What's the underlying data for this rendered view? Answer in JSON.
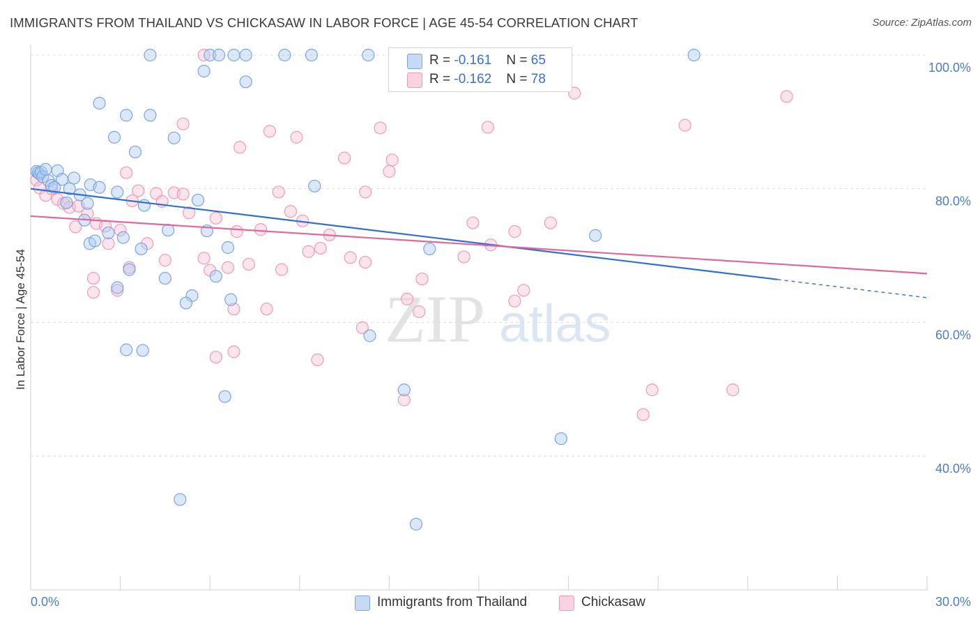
{
  "title": "IMMIGRANTS FROM THAILAND VS CHICKASAW IN LABOR FORCE | AGE 45-54 CORRELATION CHART",
  "source": "Source: ZipAtlas.com",
  "watermark": {
    "part1": "ZIP",
    "part2": "atlas"
  },
  "legend_top": {
    "rows": [
      {
        "r_label": "R = ",
        "r_value": "-0.161",
        "n_label": "N = ",
        "n_value": "65"
      },
      {
        "r_label": "R = ",
        "r_value": "-0.162",
        "n_label": "N = ",
        "n_value": "78"
      }
    ]
  },
  "colors": {
    "blue_fill": "#aecbf2",
    "blue_edge": "#7ba4e0",
    "blue_line": "#2f6fd0",
    "pink_fill": "#f7c3d4",
    "pink_edge": "#ec9bb6",
    "pink_line": "#e0679a",
    "tick_text": "#4a7cc9",
    "grid": "#dddddd"
  },
  "chart_data": {
    "type": "scatter",
    "xlabel": "",
    "ylabel": "In Labor Force | Age 45-54",
    "xlim": [
      0,
      30
    ],
    "ylim": [
      20,
      102
    ],
    "x_tick_labels": [
      "0.0%",
      "30.0%"
    ],
    "y_ticks": [
      40,
      60,
      80,
      100
    ],
    "y_tick_labels": [
      "40.0%",
      "60.0%",
      "80.0%",
      "100.0%"
    ],
    "grid": "horizontal dashed",
    "series": [
      {
        "name": "Immigrants from Thailand",
        "color": "#aecbf2",
        "trend": {
          "x0": 0.0,
          "y0": 80.0,
          "x1": 30.0,
          "y1": 63.7,
          "solid_until_x": 25.0
        },
        "points": [
          [
            0.2,
            82.6
          ],
          [
            0.25,
            82.4
          ],
          [
            0.3,
            82.2
          ],
          [
            0.35,
            82.5
          ],
          [
            0.4,
            81.8
          ],
          [
            0.5,
            82.9
          ],
          [
            0.6,
            81.2
          ],
          [
            0.7,
            80.5
          ],
          [
            0.9,
            82.7
          ],
          [
            0.8,
            80.2
          ],
          [
            1.05,
            81.4
          ],
          [
            1.3,
            80.0
          ],
          [
            1.45,
            81.6
          ],
          [
            1.65,
            79.1
          ],
          [
            2.0,
            80.6
          ],
          [
            2.3,
            80.2
          ],
          [
            2.9,
            79.5
          ],
          [
            1.2,
            77.9
          ],
          [
            1.9,
            77.8
          ],
          [
            3.8,
            77.5
          ],
          [
            5.6,
            78.3
          ],
          [
            1.8,
            75.3
          ],
          [
            2.6,
            73.4
          ],
          [
            3.1,
            72.7
          ],
          [
            4.6,
            73.8
          ],
          [
            5.9,
            73.7
          ],
          [
            1.98,
            71.8
          ],
          [
            2.15,
            72.2
          ],
          [
            3.7,
            71.0
          ],
          [
            6.6,
            71.2
          ],
          [
            13.35,
            71.0
          ],
          [
            3.3,
            67.9
          ],
          [
            4.5,
            66.6
          ],
          [
            6.2,
            66.9
          ],
          [
            2.9,
            65.2
          ],
          [
            5.4,
            64.0
          ],
          [
            6.7,
            63.4
          ],
          [
            5.2,
            62.9
          ],
          [
            3.2,
            55.9
          ],
          [
            3.75,
            55.8
          ],
          [
            11.35,
            58.0
          ],
          [
            12.5,
            49.9
          ],
          [
            6.5,
            48.9
          ],
          [
            17.75,
            42.6
          ],
          [
            5.0,
            33.5
          ],
          [
            12.9,
            29.8
          ],
          [
            2.3,
            92.8
          ],
          [
            3.2,
            91.0
          ],
          [
            4.0,
            91.0
          ],
          [
            2.8,
            87.7
          ],
          [
            3.5,
            85.5
          ],
          [
            4.8,
            87.6
          ],
          [
            5.8,
            97.6
          ],
          [
            7.2,
            96.0
          ],
          [
            4.0,
            100.0
          ],
          [
            6.0,
            100.0
          ],
          [
            6.3,
            100.0
          ],
          [
            6.8,
            100.0
          ],
          [
            7.2,
            100.0
          ],
          [
            8.5,
            100.0
          ],
          [
            9.4,
            100.0
          ],
          [
            11.3,
            100.0
          ],
          [
            22.2,
            100.0
          ],
          [
            9.5,
            80.4
          ],
          [
            18.9,
            73.0
          ]
        ]
      },
      {
        "name": "Chickasaw",
        "color": "#f7c3d4",
        "trend": {
          "x0": 0.0,
          "y0": 75.9,
          "x1": 30.0,
          "y1": 67.3
        },
        "points": [
          [
            0.2,
            81.3
          ],
          [
            0.3,
            80.1
          ],
          [
            0.5,
            79.0
          ],
          [
            0.7,
            80.0
          ],
          [
            0.9,
            78.4
          ],
          [
            1.1,
            77.8
          ],
          [
            1.3,
            77.2
          ],
          [
            1.6,
            77.4
          ],
          [
            1.9,
            76.3
          ],
          [
            2.2,
            74.8
          ],
          [
            2.5,
            74.4
          ],
          [
            3.0,
            73.8
          ],
          [
            3.6,
            79.7
          ],
          [
            4.2,
            79.3
          ],
          [
            4.4,
            78.1
          ],
          [
            4.8,
            79.4
          ],
          [
            5.1,
            79.2
          ],
          [
            5.3,
            76.4
          ],
          [
            3.2,
            82.4
          ],
          [
            1.5,
            74.3
          ],
          [
            6.2,
            75.6
          ],
          [
            6.9,
            73.6
          ],
          [
            7.7,
            73.9
          ],
          [
            8.3,
            79.5
          ],
          [
            8.7,
            76.6
          ],
          [
            9.1,
            75.2
          ],
          [
            10.0,
            73.1
          ],
          [
            11.2,
            79.5
          ],
          [
            12.0,
            82.6
          ],
          [
            12.1,
            84.3
          ],
          [
            3.4,
            78.2
          ],
          [
            3.9,
            71.8
          ],
          [
            2.6,
            71.8
          ],
          [
            2.1,
            66.6
          ],
          [
            2.9,
            64.8
          ],
          [
            3.3,
            68.2
          ],
          [
            4.5,
            69.3
          ],
          [
            5.8,
            69.6
          ],
          [
            6.0,
            67.8
          ],
          [
            6.6,
            68.2
          ],
          [
            7.3,
            68.7
          ],
          [
            8.4,
            67.9
          ],
          [
            9.3,
            70.6
          ],
          [
            9.7,
            71.1
          ],
          [
            10.7,
            69.7
          ],
          [
            11.2,
            69.0
          ],
          [
            13.1,
            66.5
          ],
          [
            14.5,
            69.8
          ],
          [
            14.8,
            74.9
          ],
          [
            15.4,
            71.6
          ],
          [
            16.2,
            73.6
          ],
          [
            17.4,
            74.9
          ],
          [
            16.5,
            64.8
          ],
          [
            16.2,
            63.2
          ],
          [
            12.6,
            63.5
          ],
          [
            13.0,
            61.6
          ],
          [
            6.8,
            62.0
          ],
          [
            7.9,
            62.0
          ],
          [
            11.1,
            59.2
          ],
          [
            6.2,
            54.8
          ],
          [
            6.8,
            55.6
          ],
          [
            9.6,
            54.4
          ],
          [
            12.5,
            48.4
          ],
          [
            20.8,
            49.9
          ],
          [
            20.5,
            46.2
          ],
          [
            23.5,
            49.9
          ],
          [
            2.1,
            64.5
          ],
          [
            7.0,
            86.2
          ],
          [
            8.0,
            88.6
          ],
          [
            8.9,
            87.7
          ],
          [
            10.5,
            84.6
          ],
          [
            11.7,
            89.1
          ],
          [
            15.3,
            89.2
          ],
          [
            21.9,
            89.5
          ],
          [
            18.2,
            94.3
          ],
          [
            25.3,
            93.8
          ],
          [
            5.1,
            89.7
          ],
          [
            5.8,
            100.0
          ]
        ]
      }
    ]
  },
  "bottom_legend": {
    "items": [
      {
        "label": "Immigrants from Thailand"
      },
      {
        "label": "Chickasaw"
      }
    ]
  }
}
